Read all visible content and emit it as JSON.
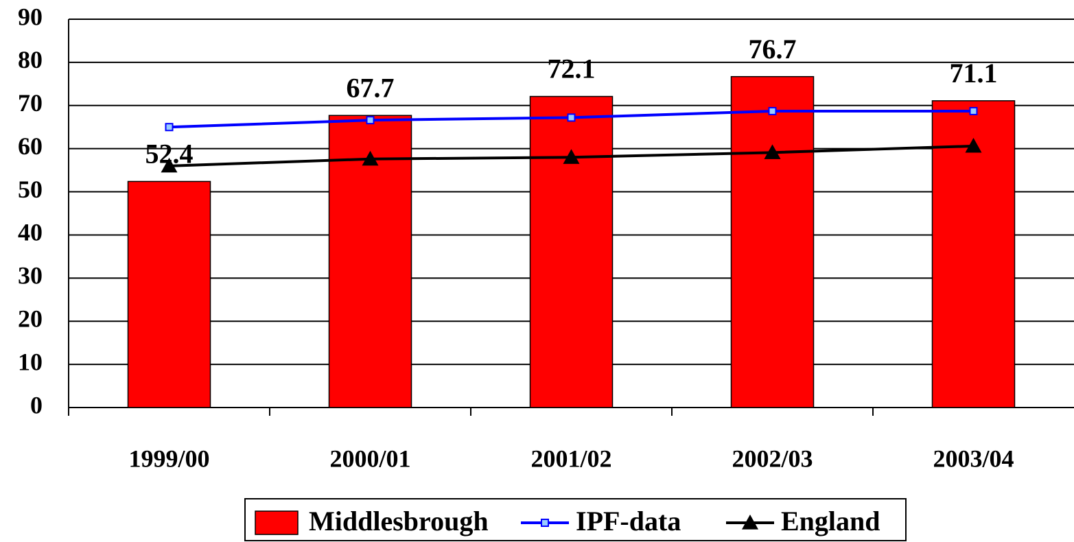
{
  "chart_data": {
    "type": "bar",
    "categories": [
      "1999/00",
      "2000/01",
      "2001/02",
      "2002/03",
      "2003/04"
    ],
    "series": [
      {
        "name": "Middlesbrough",
        "type": "bar",
        "color": "#ff0000",
        "values": [
          52.4,
          67.7,
          72.1,
          76.7,
          71.1
        ]
      },
      {
        "name": "IPF-data",
        "type": "line",
        "marker": "square",
        "color": "#0000ff",
        "values": [
          65.0,
          66.6,
          67.2,
          68.7,
          68.7
        ]
      },
      {
        "name": "England",
        "type": "line",
        "marker": "triangle",
        "color": "#000000",
        "values": [
          56.0,
          57.6,
          58.0,
          59.1,
          60.6
        ]
      }
    ],
    "ylim": [
      0,
      90
    ],
    "yticks": [
      0,
      10,
      20,
      30,
      40,
      50,
      60,
      70,
      80,
      90
    ],
    "grid": true,
    "legend": "bottom"
  }
}
